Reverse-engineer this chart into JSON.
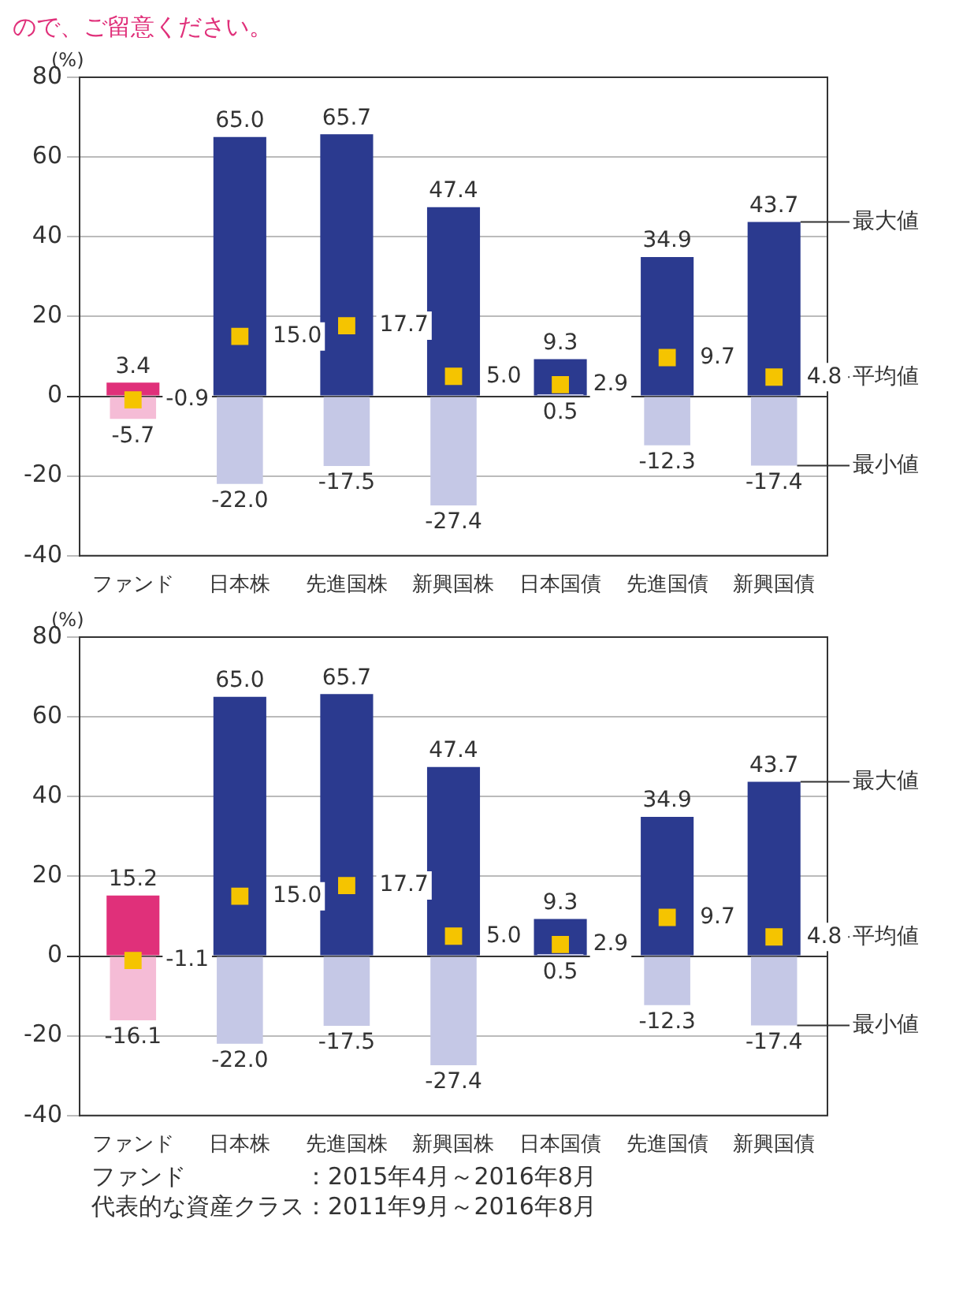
{
  "chart_data": [
    {
      "type": "bar",
      "ylabel": "(%)",
      "annotations": [
        "ので、ご留意ください。"
      ],
      "categories": [
        "ファンド",
        "日本株",
        "先進国株",
        "新興国株",
        "日本国債",
        "先進国債",
        "新興国債"
      ],
      "ylim": [
        -40,
        80
      ],
      "yticks": [
        -40,
        -20,
        0,
        20,
        40,
        60,
        80
      ],
      "grid": "y",
      "legend": false,
      "marker": "square",
      "series": [
        {
          "name": "最大値",
          "colors": [
            "#e0307a",
            "#2b3a8f",
            "#2b3a8f",
            "#2b3a8f",
            "#2b3a8f",
            "#2b3a8f",
            "#2b3a8f"
          ],
          "values": [
            3.4,
            65.0,
            65.7,
            47.4,
            9.3,
            34.9,
            43.7
          ],
          "value_labels": [
            "3.4",
            "65.0",
            "65.7",
            "47.4",
            "9.3",
            "34.9",
            "43.7"
          ]
        },
        {
          "name": "最小値",
          "colors": [
            "#f5bcd6",
            "#c5c8e6",
            "#c5c8e6",
            "#c5c8e6",
            "#c5c8e6",
            "#c5c8e6",
            "#c5c8e6"
          ],
          "values": [
            -5.7,
            -22.0,
            -17.5,
            -27.4,
            0.5,
            -12.3,
            -17.4
          ],
          "value_labels": [
            "-5.7",
            "-22.0",
            "-17.5",
            "-27.4",
            "0.5",
            "-12.3",
            "-17.4"
          ]
        },
        {
          "name": "平均値",
          "type": "scatter",
          "color": "#f5c400",
          "x": [
            "ファンド",
            "日本株",
            "先進国株",
            "新興国株",
            "日本国債",
            "先進国債",
            "新興国債"
          ],
          "values": [
            -0.9,
            15.0,
            17.7,
            5.0,
            2.9,
            9.7,
            4.8
          ],
          "value_labels": [
            "-0.9",
            "15.0",
            "17.7",
            "5.0",
            "2.9",
            "9.7",
            "4.8"
          ]
        }
      ]
    },
    {
      "type": "bar",
      "ylabel": "(%)",
      "annotations": [
        "ファンド　　　　　：2015年4月～2016年8月",
        "代表的な資産クラス：2011年9月～2016年8月"
      ],
      "categories": [
        "ファンド",
        "日本株",
        "先進国株",
        "新興国株",
        "日本国債",
        "先進国債",
        "新興国債"
      ],
      "ylim": [
        -40,
        80
      ],
      "yticks": [
        -40,
        -20,
        0,
        20,
        40,
        60,
        80
      ],
      "grid": "y",
      "legend": false,
      "marker": "square",
      "series": [
        {
          "name": "最大値",
          "colors": [
            "#e0307a",
            "#2b3a8f",
            "#2b3a8f",
            "#2b3a8f",
            "#2b3a8f",
            "#2b3a8f",
            "#2b3a8f"
          ],
          "values": [
            15.2,
            65.0,
            65.7,
            47.4,
            9.3,
            34.9,
            43.7
          ],
          "value_labels": [
            "15.2",
            "65.0",
            "65.7",
            "47.4",
            "9.3",
            "34.9",
            "43.7"
          ]
        },
        {
          "name": "最小値",
          "colors": [
            "#f5bcd6",
            "#c5c8e6",
            "#c5c8e6",
            "#c5c8e6",
            "#c5c8e6",
            "#c5c8e6",
            "#c5c8e6"
          ],
          "values": [
            -16.1,
            -22.0,
            -17.5,
            -27.4,
            0.5,
            -12.3,
            -17.4
          ],
          "value_labels": [
            "-16.1",
            "-22.0",
            "-17.5",
            "-27.4",
            "0.5",
            "-12.3",
            "-17.4"
          ]
        },
        {
          "name": "平均値",
          "type": "scatter",
          "color": "#f5c400",
          "x": [
            "ファンド",
            "日本株",
            "先進国株",
            "新興国株",
            "日本国債",
            "先進国債",
            "新興国債"
          ],
          "values": [
            -1.1,
            15.0,
            17.7,
            5.0,
            2.9,
            9.7,
            4.8
          ],
          "value_labels": [
            "-1.1",
            "15.0",
            "17.7",
            "5.0",
            "2.9",
            "9.7",
            "4.8"
          ]
        }
      ]
    }
  ]
}
